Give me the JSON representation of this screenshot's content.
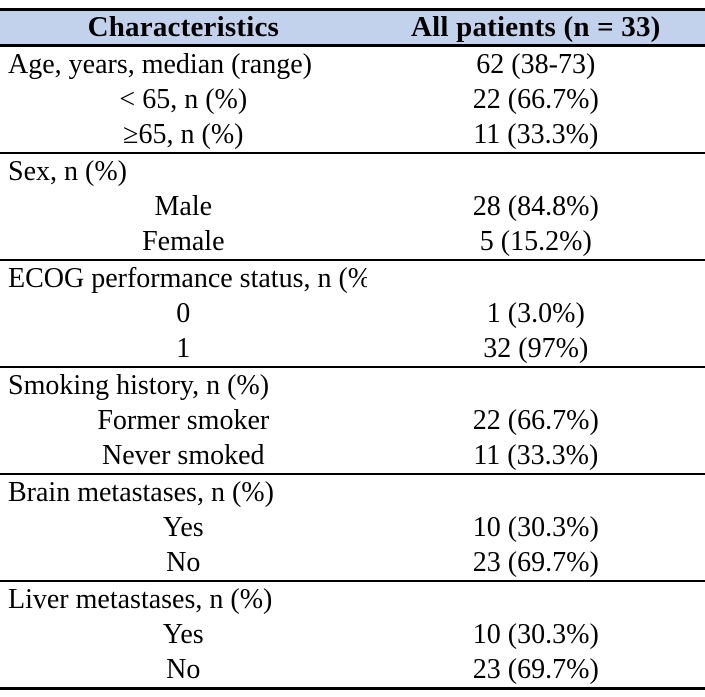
{
  "colors": {
    "header_bg": "#c3d2ec",
    "border": "#000000",
    "text": "#000000"
  },
  "table": {
    "header": {
      "characteristics": "Characteristics",
      "all_patients": "All patients (n = 33)"
    },
    "sections": [
      {
        "rows": [
          {
            "label": "Age, years, median (range)",
            "value": "62 (38-73)",
            "indent": false
          },
          {
            "label": "< 65, n (%)",
            "value": "22 (66.7%)",
            "indent": true
          },
          {
            "label": "≥65, n (%)",
            "value": "11 (33.3%)",
            "indent": true
          }
        ]
      },
      {
        "rows": [
          {
            "label": "Sex, n (%)",
            "value": "",
            "indent": false
          },
          {
            "label": "Male",
            "value": "28 (84.8%)",
            "indent": true
          },
          {
            "label": "Female",
            "value": "5 (15.2%)",
            "indent": true
          }
        ]
      },
      {
        "rows": [
          {
            "label": "ECOG performance status, n (%)",
            "value": "",
            "indent": false
          },
          {
            "label": "0",
            "value": "1 (3.0%)",
            "indent": true
          },
          {
            "label": "1",
            "value": "32 (97%)",
            "indent": true
          }
        ]
      },
      {
        "rows": [
          {
            "label": "Smoking history, n (%)",
            "value": "",
            "indent": false
          },
          {
            "label": "Former smoker",
            "value": "22 (66.7%)",
            "indent": true
          },
          {
            "label": "Never smoked",
            "value": "11 (33.3%)",
            "indent": true
          }
        ]
      },
      {
        "rows": [
          {
            "label": "Brain metastases, n (%)",
            "value": "",
            "indent": false
          },
          {
            "label": "Yes",
            "value": "10 (30.3%)",
            "indent": true
          },
          {
            "label": "No",
            "value": "23 (69.7%)",
            "indent": true
          }
        ]
      },
      {
        "rows": [
          {
            "label": "Liver metastases, n (%)",
            "value": "",
            "indent": false
          },
          {
            "label": "Yes",
            "value": "10 (30.3%)",
            "indent": true
          },
          {
            "label": "No",
            "value": "23 (69.7%)",
            "indent": true
          }
        ]
      }
    ]
  }
}
